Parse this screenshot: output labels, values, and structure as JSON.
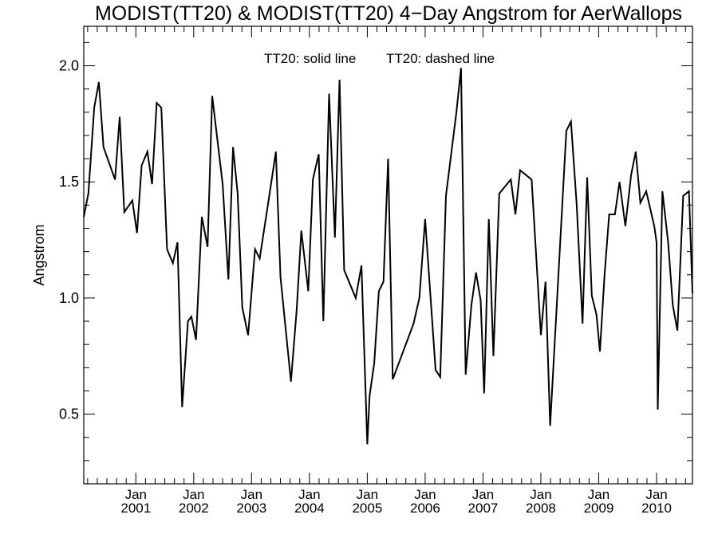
{
  "chart_data": {
    "type": "line",
    "title": "MODIST(TT20) & MODIST(TT20) 4−Day Angstrom for AerWallops",
    "ylabel": "Angstrom",
    "xlabel": "",
    "annotation_left": "TT20: solid line",
    "annotation_right": "TT20: dashed line",
    "xlim": [
      2000.1,
      2010.62
    ],
    "ylim": [
      0.2,
      2.17
    ],
    "y_ticks": [
      {
        "value": 0.5,
        "label": "0.5"
      },
      {
        "value": 1.0,
        "label": "1.0"
      },
      {
        "value": 1.5,
        "label": "1.5"
      },
      {
        "value": 2.0,
        "label": "2.0"
      }
    ],
    "x_ticks": [
      {
        "value": 2001.0,
        "month": "Jan",
        "year": "2001"
      },
      {
        "value": 2002.0,
        "month": "Jan",
        "year": "2002"
      },
      {
        "value": 2003.0,
        "month": "Jan",
        "year": "2003"
      },
      {
        "value": 2004.0,
        "month": "Jan",
        "year": "2004"
      },
      {
        "value": 2005.0,
        "month": "Jan",
        "year": "2005"
      },
      {
        "value": 2006.0,
        "month": "Jan",
        "year": "2006"
      },
      {
        "value": 2007.0,
        "month": "Jan",
        "year": "2007"
      },
      {
        "value": 2008.0,
        "month": "Jan",
        "year": "2008"
      },
      {
        "value": 2009.0,
        "month": "Jan",
        "year": "2009"
      },
      {
        "value": 2010.0,
        "month": "Jan",
        "year": "2010"
      }
    ],
    "grid": false,
    "series": [
      {
        "style": "solid",
        "color": "#000000",
        "points": [
          [
            2000.1,
            1.35
          ],
          [
            2000.18,
            1.45
          ],
          [
            2000.28,
            1.82
          ],
          [
            2000.36,
            1.93
          ],
          [
            2000.44,
            1.65
          ],
          [
            2000.64,
            1.51
          ],
          [
            2000.72,
            1.78
          ],
          [
            2000.8,
            1.37
          ],
          [
            2000.94,
            1.42
          ],
          [
            2001.02,
            1.28
          ],
          [
            2001.1,
            1.57
          ],
          [
            2001.2,
            1.63
          ],
          [
            2001.28,
            1.49
          ],
          [
            2001.36,
            1.84
          ],
          [
            2001.44,
            1.82
          ],
          [
            2001.54,
            1.21
          ],
          [
            2001.64,
            1.15
          ],
          [
            2001.72,
            1.24
          ],
          [
            2001.8,
            0.53
          ],
          [
            2001.9,
            0.9
          ],
          [
            2001.96,
            0.92
          ],
          [
            2002.04,
            0.82
          ],
          [
            2002.14,
            1.35
          ],
          [
            2002.24,
            1.22
          ],
          [
            2002.32,
            1.87
          ],
          [
            2002.5,
            1.49
          ],
          [
            2002.6,
            1.08
          ],
          [
            2002.68,
            1.65
          ],
          [
            2002.76,
            1.45
          ],
          [
            2002.84,
            0.96
          ],
          [
            2002.94,
            0.84
          ],
          [
            2003.06,
            1.21
          ],
          [
            2003.14,
            1.17
          ],
          [
            2003.3,
            1.43
          ],
          [
            2003.42,
            1.63
          ],
          [
            2003.5,
            1.09
          ],
          [
            2003.68,
            0.64
          ],
          [
            2003.78,
            0.95
          ],
          [
            2003.86,
            1.29
          ],
          [
            2003.98,
            1.03
          ],
          [
            2004.06,
            1.51
          ],
          [
            2004.16,
            1.62
          ],
          [
            2004.24,
            0.9
          ],
          [
            2004.34,
            1.88
          ],
          [
            2004.44,
            1.26
          ],
          [
            2004.52,
            1.94
          ],
          [
            2004.6,
            1.12
          ],
          [
            2004.8,
            1.0
          ],
          [
            2004.9,
            1.14
          ],
          [
            2005.0,
            0.37
          ],
          [
            2005.04,
            0.58
          ],
          [
            2005.12,
            0.72
          ],
          [
            2005.2,
            1.03
          ],
          [
            2005.28,
            1.07
          ],
          [
            2005.36,
            1.6
          ],
          [
            2005.44,
            0.65
          ],
          [
            2005.8,
            0.89
          ],
          [
            2005.9,
            1.0
          ],
          [
            2006.0,
            1.34
          ],
          [
            2006.18,
            0.69
          ],
          [
            2006.26,
            0.66
          ],
          [
            2006.36,
            1.44
          ],
          [
            2006.54,
            1.8
          ],
          [
            2006.62,
            1.99
          ],
          [
            2006.7,
            0.67
          ],
          [
            2006.8,
            0.97
          ],
          [
            2006.88,
            1.11
          ],
          [
            2006.96,
            0.99
          ],
          [
            2007.02,
            0.59
          ],
          [
            2007.1,
            1.34
          ],
          [
            2007.18,
            0.75
          ],
          [
            2007.28,
            1.45
          ],
          [
            2007.48,
            1.51
          ],
          [
            2007.56,
            1.36
          ],
          [
            2007.64,
            1.55
          ],
          [
            2007.84,
            1.51
          ],
          [
            2008.0,
            0.84
          ],
          [
            2008.08,
            1.07
          ],
          [
            2008.16,
            0.45
          ],
          [
            2008.44,
            1.72
          ],
          [
            2008.52,
            1.76
          ],
          [
            2008.62,
            1.4
          ],
          [
            2008.72,
            0.89
          ],
          [
            2008.8,
            1.52
          ],
          [
            2008.88,
            1.01
          ],
          [
            2008.96,
            0.93
          ],
          [
            2009.02,
            0.77
          ],
          [
            2009.1,
            1.1
          ],
          [
            2009.18,
            1.36
          ],
          [
            2009.28,
            1.36
          ],
          [
            2009.36,
            1.5
          ],
          [
            2009.46,
            1.31
          ],
          [
            2009.56,
            1.53
          ],
          [
            2009.64,
            1.63
          ],
          [
            2009.72,
            1.41
          ],
          [
            2009.82,
            1.46
          ],
          [
            2009.96,
            1.31
          ],
          [
            2010.0,
            1.24
          ],
          [
            2010.02,
            0.52
          ],
          [
            2010.1,
            1.46
          ],
          [
            2010.2,
            1.24
          ],
          [
            2010.28,
            0.97
          ],
          [
            2010.36,
            0.86
          ],
          [
            2010.46,
            1.44
          ],
          [
            2010.56,
            1.46
          ],
          [
            2010.62,
            1.02
          ]
        ]
      }
    ]
  }
}
